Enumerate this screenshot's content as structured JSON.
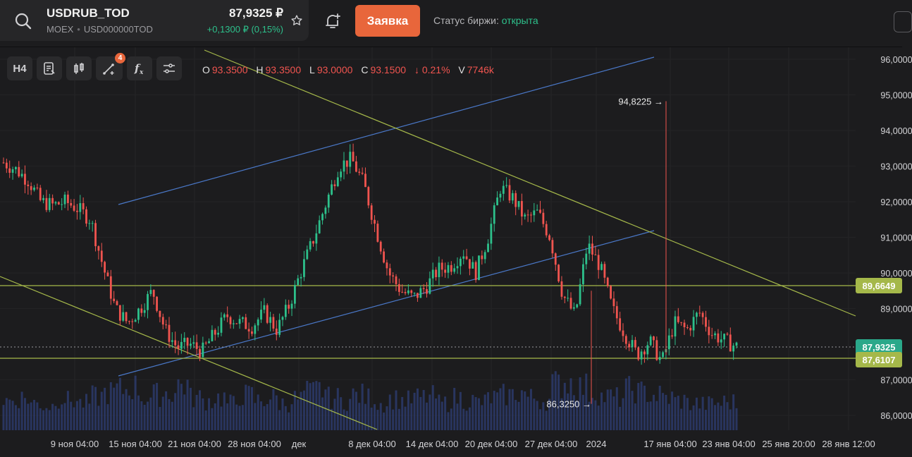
{
  "instrument": {
    "symbol": "USDRUB_TOD",
    "exchange": "MOEX",
    "isin": "USD000000TOD",
    "price": "87,9325 ₽",
    "change": "+0,1300 ₽ (0,15%)"
  },
  "order_button": "Заявка",
  "exchange_status": {
    "label": "Статус биржи:",
    "value": "открыта"
  },
  "toolbar": {
    "timeframe": "H4",
    "drawings_badge": "4"
  },
  "ohlc": {
    "o_label": "O",
    "o": "93.3500",
    "h_label": "H",
    "h": "93.3500",
    "l_label": "L",
    "l": "93.0000",
    "c_label": "C",
    "c": "93.1500",
    "change": "↓ 0.21%",
    "v_label": "V",
    "v": "7746k"
  },
  "colors": {
    "up": "#2dc08b",
    "down": "#f0544f",
    "accent": "#e8663b",
    "trend_line": "#a5b84a",
    "channel": "#4a78c8"
  },
  "chart_data": {
    "type": "candlestick",
    "x_ticks": [
      "9 ноя 04:00",
      "15 ноя 04:00",
      "21 ноя 04:00",
      "28 ноя 04:00",
      "дек",
      "8 дек 04:00",
      "14 дек 04:00",
      "20 дек 04:00",
      "27 дек 04:00",
      "2024",
      "17 янв 04:00",
      "23 янв 04:00",
      "25 янв 20:00",
      "28 янв 12:00"
    ],
    "y_ticks": [
      "96,0000",
      "95,0000",
      "94,0000",
      "93,0000",
      "92,0000",
      "91,0000",
      "90,0000",
      "89,0000",
      "87,0000",
      "86,0000"
    ],
    "ylim": [
      85.6,
      96.3
    ],
    "price_labels": [
      {
        "text": "89,6649",
        "value": 89.6649
      },
      {
        "text": "87,9325",
        "value": 87.9325
      },
      {
        "text": "87,6107",
        "value": 87.6107
      }
    ],
    "annotations": [
      {
        "text": "94,8225 →",
        "value": 94.8225
      },
      {
        "text": "86,3250 →",
        "value": 86.325
      }
    ],
    "close_path": [
      93.1,
      92.9,
      92.6,
      92.0,
      91.9,
      92.0,
      91.8,
      91.5,
      90.2,
      89.0,
      88.6,
      89.0,
      89.5,
      88.4,
      87.9,
      88.0,
      87.8,
      88.3,
      88.8,
      88.6,
      88.5,
      88.9,
      88.4,
      89.1,
      90.1,
      91.0,
      92.0,
      93.0,
      93.2,
      92.5,
      91.2,
      90.0,
      89.5,
      89.3,
      89.6,
      90.1,
      90.2,
      90.6,
      90.0,
      91.0,
      92.4,
      92.1,
      91.5,
      91.7,
      91.0,
      89.4,
      88.8,
      90.8,
      90.2,
      89.0,
      88.3,
      87.7,
      88.1,
      87.5,
      88.6,
      88.4,
      88.9,
      88.3,
      88.1,
      87.93
    ],
    "volume_fraction": [
      0.55,
      0.6,
      0.5,
      0.45,
      0.6,
      0.55,
      0.5,
      0.62,
      0.7,
      0.75,
      0.8,
      0.6,
      0.66,
      0.7,
      0.85,
      0.6,
      0.55,
      0.6,
      0.5,
      0.65,
      0.55,
      0.6,
      0.5,
      0.58,
      0.7,
      0.75,
      0.6,
      0.55,
      0.65,
      0.6,
      0.5,
      0.58,
      0.55,
      0.6,
      0.62,
      0.5,
      0.6,
      0.55,
      0.52,
      0.6,
      0.65,
      0.7,
      0.6,
      0.55,
      0.85,
      0.9,
      0.8,
      0.7,
      0.62,
      0.6,
      0.75,
      0.7,
      0.65,
      0.6,
      0.55,
      0.5,
      0.48,
      0.5,
      0.52,
      0.5
    ]
  }
}
